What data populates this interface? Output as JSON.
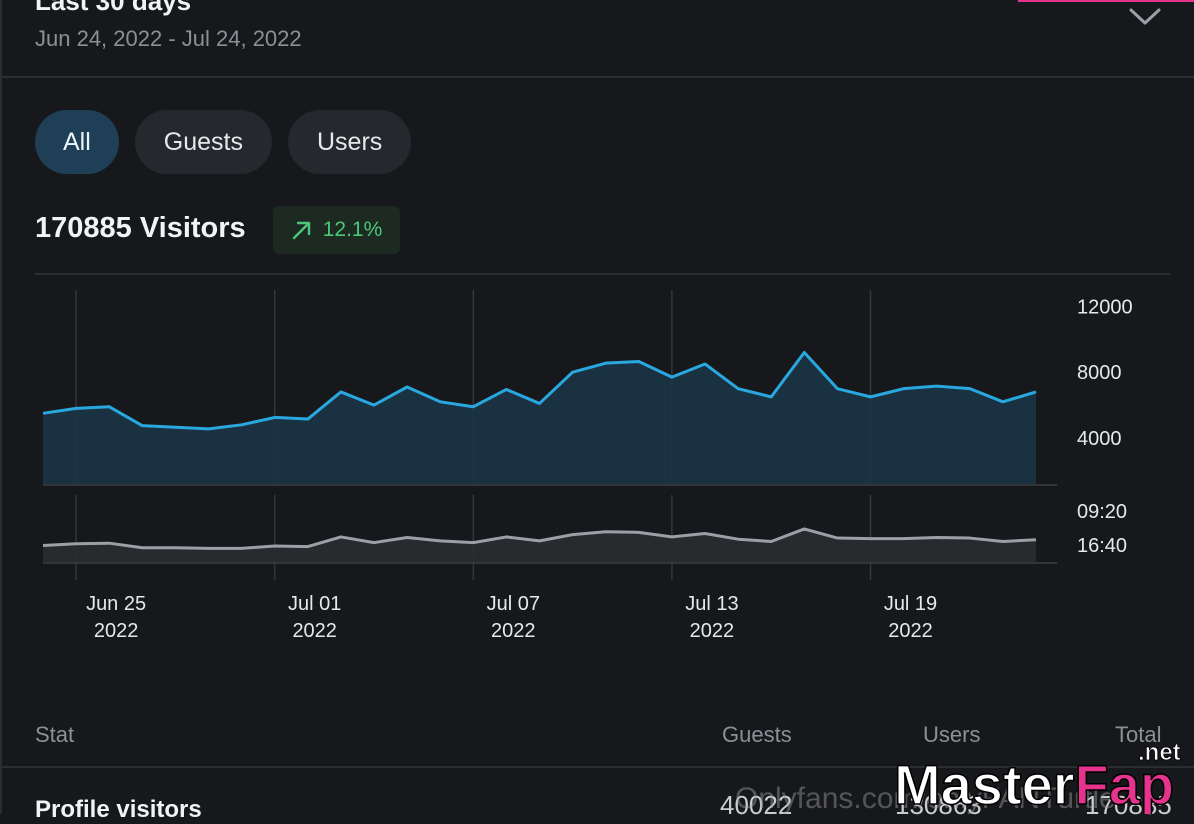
{
  "header": {
    "period_title": "Last 30 days",
    "date_range": "Jun 24, 2022 - Jul 24, 2022"
  },
  "filters": [
    "All",
    "Guests",
    "Users"
  ],
  "summary": {
    "visitors_label": "170885 Visitors",
    "trend_value": "12.1%"
  },
  "chart_data": [
    {
      "type": "area",
      "title": "",
      "x": [
        "Jun 24",
        "Jun 25",
        "Jun 26",
        "Jun 27",
        "Jun 28",
        "Jun 29",
        "Jun 30",
        "Jul 01",
        "Jul 02",
        "Jul 03",
        "Jul 04",
        "Jul 05",
        "Jul 06",
        "Jul 07",
        "Jul 08",
        "Jul 09",
        "Jul 10",
        "Jul 11",
        "Jul 12",
        "Jul 13",
        "Jul 14",
        "Jul 15",
        "Jul 16",
        "Jul 17",
        "Jul 18",
        "Jul 19",
        "Jul 20",
        "Jul 21",
        "Jul 22",
        "Jul 23",
        "Jul 24"
      ],
      "series": [
        {
          "values": [
            5500,
            5800,
            5900,
            4750,
            4650,
            4550,
            4800,
            5250,
            5150,
            6800,
            6000,
            7100,
            6200,
            5900,
            6950,
            6100,
            8000,
            8550,
            8650,
            7700,
            8500,
            7000,
            6500,
            9200,
            7000,
            6500,
            7000,
            7150,
            7000,
            6200,
            6800
          ]
        }
      ],
      "y_ticks": [
        "12000",
        "8000",
        "4000"
      ],
      "ylim": [
        1200,
        13000
      ],
      "x_tick_labels": [
        [
          "Jun 25",
          "2022"
        ],
        [
          "Jul 01",
          "2022"
        ],
        [
          "Jul 07",
          "2022"
        ],
        [
          "Jul 13",
          "2022"
        ],
        [
          "Jul 19",
          "2022"
        ]
      ],
      "x_tick_dates": [
        "Jun 25",
        "Jul 01",
        "Jul 07",
        "Jul 13",
        "Jul 19"
      ],
      "grid": "vertical",
      "line_color": "#29a8e0",
      "fill_color": "#1b3447"
    },
    {
      "type": "area",
      "title": "",
      "x": [
        "Jun 24",
        "Jun 25",
        "Jun 26",
        "Jun 27",
        "Jun 28",
        "Jun 29",
        "Jun 30",
        "Jul 01",
        "Jul 02",
        "Jul 03",
        "Jul 04",
        "Jul 05",
        "Jul 06",
        "Jul 07",
        "Jul 08",
        "Jul 09",
        "Jul 10",
        "Jul 11",
        "Jul 12",
        "Jul 13",
        "Jul 14",
        "Jul 15",
        "Jul 16",
        "Jul 17",
        "Jul 18",
        "Jul 19",
        "Jul 20",
        "Jul 21",
        "Jul 22",
        "Jul 23",
        "Jul 24"
      ],
      "series": [
        {
          "values": [
            0.29,
            0.32,
            0.33,
            0.25,
            0.25,
            0.24,
            0.24,
            0.28,
            0.27,
            0.44,
            0.34,
            0.43,
            0.37,
            0.34,
            0.44,
            0.37,
            0.48,
            0.53,
            0.52,
            0.44,
            0.5,
            0.4,
            0.36,
            0.58,
            0.42,
            0.41,
            0.41,
            0.43,
            0.42,
            0.36,
            0.39
          ]
        }
      ],
      "y_ticks": [
        "09:20",
        "16:40"
      ],
      "ylim": [
        0,
        1
      ],
      "grid": "vertical",
      "line_color": "#9aa0a6",
      "fill_color": "#2a2c30"
    }
  ],
  "table": {
    "headers": {
      "stat": "Stat",
      "guests": "Guests",
      "users": "Users",
      "total": "Total"
    },
    "rows": [
      {
        "label": "Profile visitors",
        "guests": "40022",
        "users": "130863",
        "total": "170885"
      }
    ]
  },
  "watermark": {
    "text": "Onlyfans.com/onlyFANTurtle",
    "logo_main": "MasterFap",
    "logo_suffix": ".net"
  },
  "colors": {
    "accent_blue": "#29a8e0",
    "trend_green": "#4cc77a",
    "active_filter_bg": "#1e3f56",
    "pink": "#e5338e"
  },
  "icons": {
    "expand": "chevron-down-icon",
    "trend": "arrow-up-right-icon"
  }
}
